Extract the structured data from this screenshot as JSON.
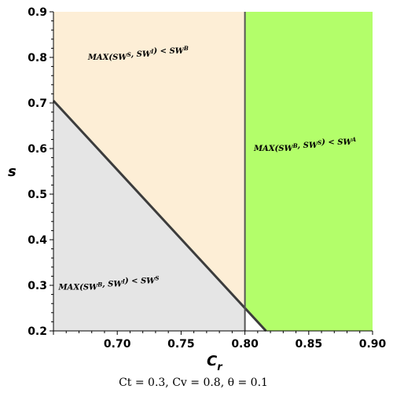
{
  "chart_data": {
    "type": "area",
    "title": "",
    "xlabel": "C",
    "xlabel_sub": "r",
    "ylabel": "s",
    "xlim": [
      0.65,
      0.9
    ],
    "ylim": [
      0.2,
      0.9
    ],
    "x_ticks": [
      0.7,
      0.75,
      0.8,
      0.85,
      0.9
    ],
    "x_tick_labels": [
      "0.70",
      "0.75",
      "0.80",
      "0.85",
      "0.90"
    ],
    "y_ticks": [
      0.2,
      0.3,
      0.4,
      0.5,
      0.6,
      0.7,
      0.8,
      0.9
    ],
    "y_tick_labels": [
      "0.2",
      "0.3",
      "0.4",
      "0.5",
      "0.6",
      "0.7",
      "0.8",
      "0.9"
    ],
    "boundaries": {
      "diagonal": {
        "from": [
          0.65,
          0.705
        ],
        "to": [
          0.8165,
          0.2
        ]
      },
      "vertical": {
        "x": 0.8,
        "from_y": 0.2,
        "to_y": 0.9
      }
    },
    "regions": [
      {
        "name": "B",
        "label_parts": [
          "MAX(",
          "SW",
          "S",
          ", SW",
          "I",
          ") < SW",
          "B"
        ],
        "color": "#fdeed6",
        "label_at": [
          0.677,
          0.8
        ]
      },
      {
        "name": "S",
        "label_parts": [
          "MAX(",
          "SW",
          "B",
          ", SW",
          "I",
          ") < SW",
          "S"
        ],
        "color": "#e5e5e5",
        "label_at": [
          0.654,
          0.296
        ]
      },
      {
        "name": "A",
        "label_parts": [
          "MAX(",
          "SW",
          "B",
          ", SW",
          "S",
          ") < SW",
          "A"
        ],
        "color": "#b3fe6a",
        "label_at": [
          0.807,
          0.6
        ]
      }
    ],
    "caption": "Ct = 0.3,  Cv = 0.8, θ = 0.1"
  }
}
